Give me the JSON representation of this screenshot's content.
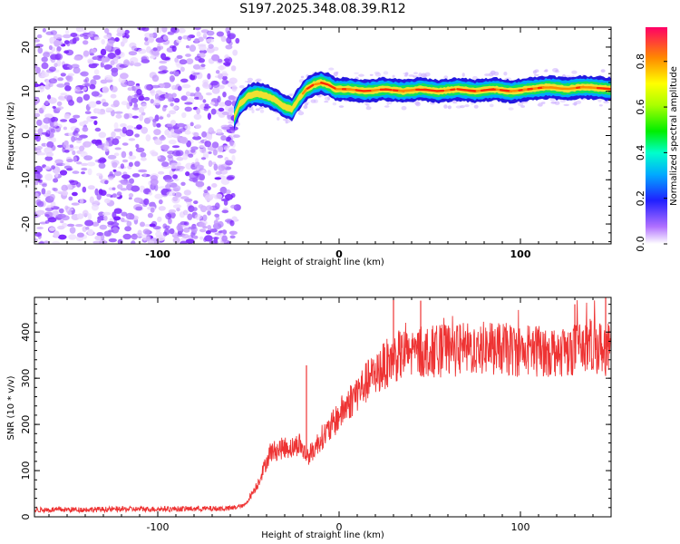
{
  "title": "S197.2025.348.08.39.R12",
  "chart_data": [
    {
      "type": "heatmap",
      "xlabel": "Height of straight line (km)",
      "ylabel": "Frequency (Hz)",
      "xlim": [
        -168,
        150
      ],
      "ylim": [
        -24.5,
        24.5
      ],
      "xticks": [
        -100,
        0,
        100
      ],
      "yticks": [
        -20,
        -10,
        0,
        10,
        20
      ],
      "noise_region_x": [
        -168,
        -56
      ],
      "trace": [
        {
          "x": -58,
          "y": 4
        },
        {
          "x": -55,
          "y": 7
        },
        {
          "x": -50,
          "y": 9
        },
        {
          "x": -45,
          "y": 9.5
        },
        {
          "x": -40,
          "y": 9
        },
        {
          "x": -35,
          "y": 8
        },
        {
          "x": -30,
          "y": 6.5
        },
        {
          "x": -26,
          "y": 6
        },
        {
          "x": -22,
          "y": 8.5
        },
        {
          "x": -18,
          "y": 10.5
        },
        {
          "x": -14,
          "y": 11.5
        },
        {
          "x": -10,
          "y": 12
        },
        {
          "x": -6,
          "y": 11.5
        },
        {
          "x": -2,
          "y": 10.5
        },
        {
          "x": 5,
          "y": 10.5
        },
        {
          "x": 15,
          "y": 10
        },
        {
          "x": 25,
          "y": 10.5
        },
        {
          "x": 35,
          "y": 10
        },
        {
          "x": 45,
          "y": 10.5
        },
        {
          "x": 55,
          "y": 10
        },
        {
          "x": 65,
          "y": 10.5
        },
        {
          "x": 75,
          "y": 10
        },
        {
          "x": 85,
          "y": 10.5
        },
        {
          "x": 95,
          "y": 10
        },
        {
          "x": 105,
          "y": 10.5
        },
        {
          "x": 115,
          "y": 11
        },
        {
          "x": 125,
          "y": 10.5
        },
        {
          "x": 135,
          "y": 11
        },
        {
          "x": 150,
          "y": 10.5
        }
      ],
      "colorbar": {
        "label": "Normalized spectral amplitude",
        "range": [
          0,
          0.95
        ],
        "ticks": [
          0.0,
          0.2,
          0.4,
          0.6,
          0.8
        ]
      }
    },
    {
      "type": "line",
      "xlabel": "Height of straight line (km)",
      "ylabel": "SNR (10 * v/v)",
      "xlim": [
        -168,
        150
      ],
      "ylim": [
        0,
        475
      ],
      "xticks": [
        -100,
        0,
        100
      ],
      "yticks": [
        0,
        100,
        200,
        300,
        400
      ],
      "color": "#ee3333",
      "envelope": [
        {
          "x": -168,
          "y": 15
        },
        {
          "x": -60,
          "y": 18
        },
        {
          "x": -52,
          "y": 25
        },
        {
          "x": -45,
          "y": 70
        },
        {
          "x": -38,
          "y": 140
        },
        {
          "x": -30,
          "y": 150
        },
        {
          "x": -25,
          "y": 150
        },
        {
          "x": -22,
          "y": 160
        },
        {
          "x": -18,
          "y": 130
        },
        {
          "x": -15,
          "y": 140
        },
        {
          "x": -10,
          "y": 170
        },
        {
          "x": -5,
          "y": 190
        },
        {
          "x": 0,
          "y": 220
        },
        {
          "x": 10,
          "y": 270
        },
        {
          "x": 20,
          "y": 310
        },
        {
          "x": 30,
          "y": 345
        },
        {
          "x": 40,
          "y": 355
        },
        {
          "x": 60,
          "y": 360
        },
        {
          "x": 80,
          "y": 365
        },
        {
          "x": 100,
          "y": 360
        },
        {
          "x": 120,
          "y": 360
        },
        {
          "x": 140,
          "y": 370
        },
        {
          "x": 150,
          "y": 360
        }
      ],
      "spikes": [
        {
          "x": -18,
          "y": 328
        },
        {
          "x": 30,
          "y": 470
        },
        {
          "x": 45,
          "y": 468
        },
        {
          "x": 130,
          "y": 460
        },
        {
          "x": 147,
          "y": 478
        }
      ]
    }
  ]
}
